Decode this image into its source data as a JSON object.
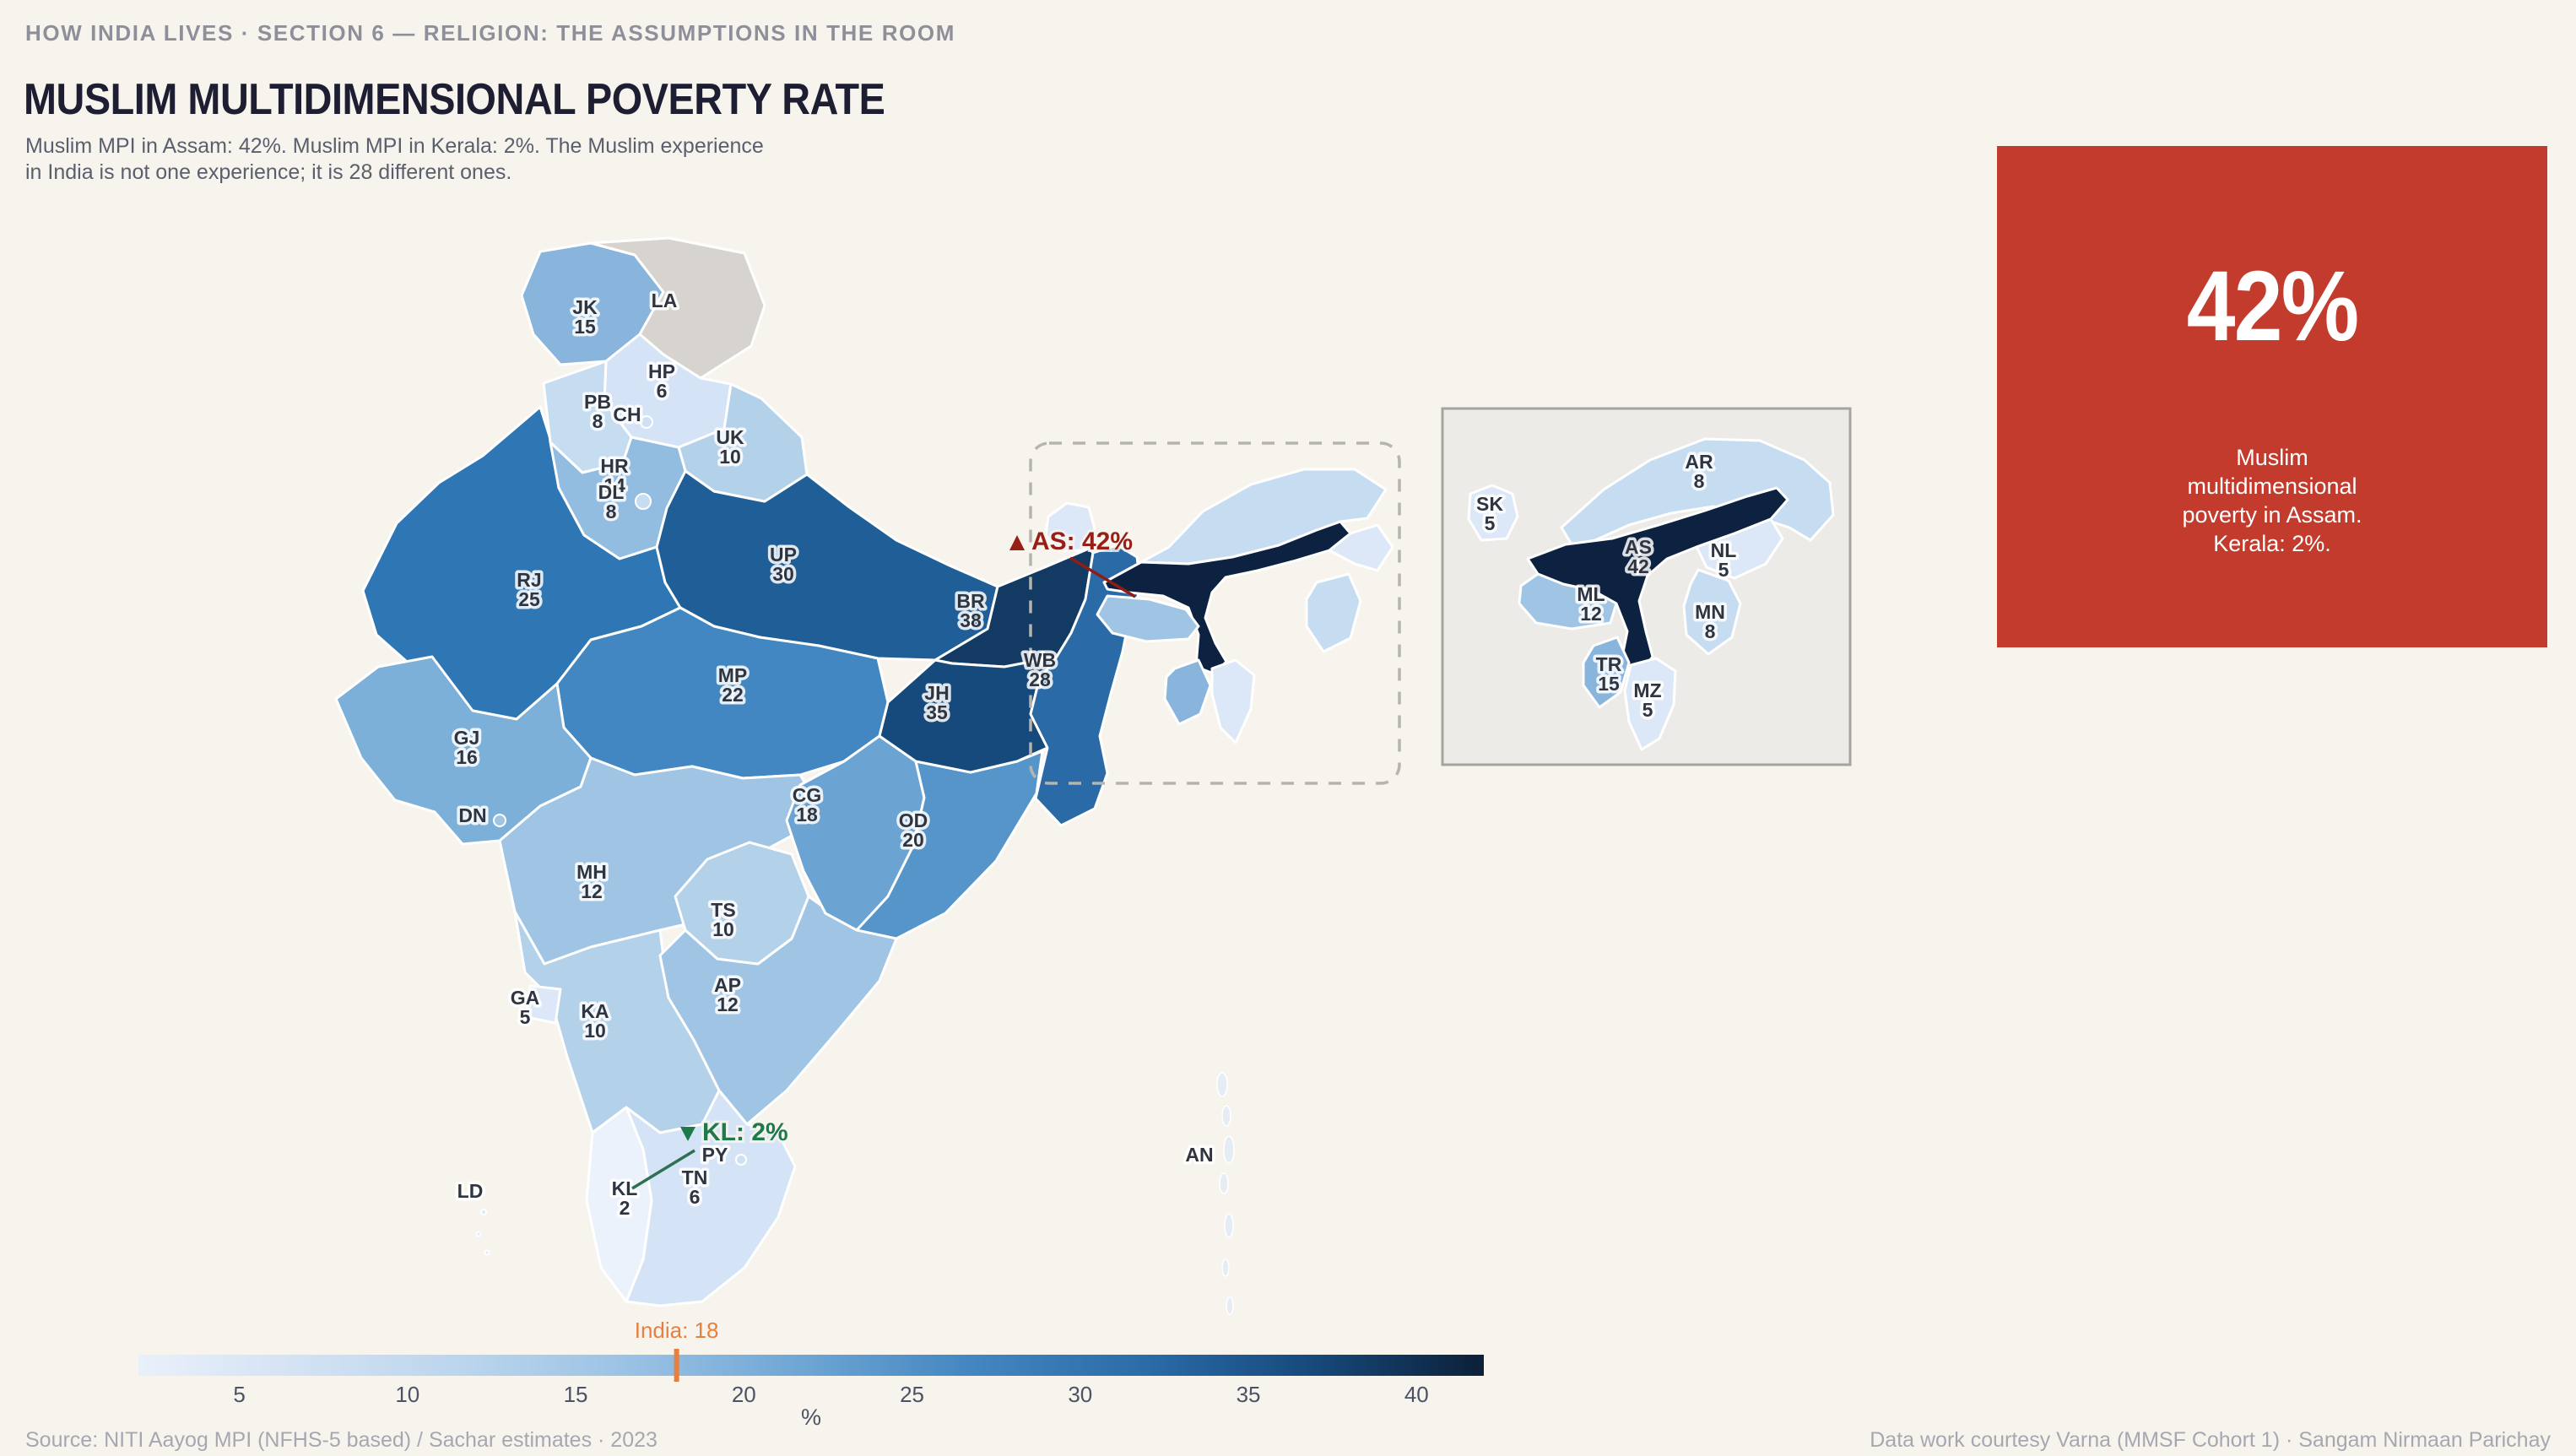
{
  "page": {
    "kicker": "HOW INDIA LIVES  ·  SECTION 6 — RELIGION: THE ASSUMPTIONS IN THE ROOM",
    "title": "MUSLIM MULTIDIMENSIONAL POVERTY RATE",
    "subtitle_lines": [
      "Muslim MPI in Assam: 42%. Muslim MPI in Kerala: 2%. The Muslim experience",
      "in India is not one experience; it is 28 different ones."
    ],
    "source": "Source: NITI Aayog MPI (NFHS-5 based) / Sachar estimates  ·  2023",
    "credit": "Data work courtesy Varna (MMSF Cohort 1)  ·  Sangam Nirmaan Parichay",
    "background": "#f7f4ee"
  },
  "callout": {
    "big_value": "42%",
    "caption_lines": [
      "Muslim",
      "multidimensional",
      "poverty in Assam.",
      "Kerala: 2%."
    ],
    "bg": "#c23b2c",
    "fg": "#ffffff"
  },
  "annotations": {
    "assam": {
      "symbol": "up-triangle",
      "label": "AS: 42%",
      "color": "#981f16"
    },
    "kerala": {
      "symbol": "down-triangle",
      "label": "KL: 2%",
      "color": "#1e7a4c"
    },
    "india": {
      "label": "India: 18",
      "value": 18,
      "color": "#e87f3e"
    }
  },
  "legend": {
    "axis_label": "%",
    "ticks": [
      5,
      10,
      15,
      20,
      25,
      30,
      35,
      40
    ],
    "domain": [
      2,
      42
    ],
    "gradient": [
      {
        "o": 0,
        "c": "#e9f0fa"
      },
      {
        "o": 12,
        "c": "#d3e2f4"
      },
      {
        "o": 25,
        "c": "#b9d4ec"
      },
      {
        "o": 37,
        "c": "#99c1e4"
      },
      {
        "o": 50,
        "c": "#6ca4d3"
      },
      {
        "o": 62,
        "c": "#4386c0"
      },
      {
        "o": 75,
        "c": "#2a6ba8"
      },
      {
        "o": 87,
        "c": "#174a7c"
      },
      {
        "o": 100,
        "c": "#0c2038"
      }
    ]
  },
  "map_style": {
    "state_stroke": "#ffffff",
    "no_data_fill": "#d7d4cf",
    "dashed_box_color": "#b6b4ae",
    "inset_bg": "#edebe7",
    "inset_border": "#a6a49f",
    "label_color": "#2e3440"
  },
  "chart_data": {
    "type": "choropleth",
    "title": "MUSLIM MULTIDIMENSIONAL POVERTY RATE",
    "unit": "%",
    "india_average": 18,
    "scale": {
      "domain": [
        2,
        42
      ],
      "ticks": [
        5,
        10,
        15,
        20,
        25,
        30,
        35,
        40
      ],
      "palette": "blues"
    },
    "states": [
      {
        "code": "JK",
        "value": 15,
        "color": "#89b5dc"
      },
      {
        "code": "LA",
        "value": null,
        "color": "#d7d4cf"
      },
      {
        "code": "HP",
        "value": 6,
        "color": "#d4e3f5"
      },
      {
        "code": "PB",
        "value": 8,
        "color": "#c6dcf1"
      },
      {
        "code": "CH",
        "value": null,
        "color": "#cfe0f3"
      },
      {
        "code": "UK",
        "value": 10,
        "color": "#b4d1ea"
      },
      {
        "code": "HR",
        "value": 14,
        "color": "#93bde0"
      },
      {
        "code": "DL",
        "value": 8,
        "color": "#c6dcf1"
      },
      {
        "code": "RJ",
        "value": 25,
        "color": "#2f76b4"
      },
      {
        "code": "UP",
        "value": 30,
        "color": "#1f5e97"
      },
      {
        "code": "BR",
        "value": 38,
        "color": "#123a63"
      },
      {
        "code": "WB",
        "value": 28,
        "color": "#2a6aa6"
      },
      {
        "code": "JH",
        "value": 35,
        "color": "#174a7c"
      },
      {
        "code": "MP",
        "value": 22,
        "color": "#4287c1"
      },
      {
        "code": "GJ",
        "value": 16,
        "color": "#7db0d9"
      },
      {
        "code": "DN",
        "value": null,
        "color": "#9fc4e4"
      },
      {
        "code": "CG",
        "value": 18,
        "color": "#6ba3d2"
      },
      {
        "code": "OD",
        "value": 20,
        "color": "#5595ca"
      },
      {
        "code": "MH",
        "value": 12,
        "color": "#a0c5e4"
      },
      {
        "code": "TS",
        "value": 10,
        "color": "#b4d1ea"
      },
      {
        "code": "AP",
        "value": 12,
        "color": "#a0c5e4"
      },
      {
        "code": "KA",
        "value": 10,
        "color": "#b4d1ea"
      },
      {
        "code": "GA",
        "value": 5,
        "color": "#dce8f7"
      },
      {
        "code": "KL",
        "value": 2,
        "color": "#ecf2fb"
      },
      {
        "code": "TN",
        "value": 6,
        "color": "#d4e3f5"
      },
      {
        "code": "PY",
        "value": null,
        "color": "#cfe0f3"
      },
      {
        "code": "LD",
        "value": null,
        "color": "#dce8f7"
      },
      {
        "code": "AN",
        "value": null,
        "color": "#e6ecf3"
      },
      {
        "code": "SK",
        "value": 5,
        "color": "#dce8f7"
      },
      {
        "code": "AR",
        "value": 8,
        "color": "#c6dcf1"
      },
      {
        "code": "AS",
        "value": 42,
        "color": "#0c2240"
      },
      {
        "code": "NL",
        "value": 5,
        "color": "#dce8f7"
      },
      {
        "code": "ML",
        "value": 12,
        "color": "#a0c5e4"
      },
      {
        "code": "MN",
        "value": 8,
        "color": "#c6dcf1"
      },
      {
        "code": "TR",
        "value": 15,
        "color": "#89b5dc"
      },
      {
        "code": "MZ",
        "value": 5,
        "color": "#dce8f7"
      }
    ]
  }
}
